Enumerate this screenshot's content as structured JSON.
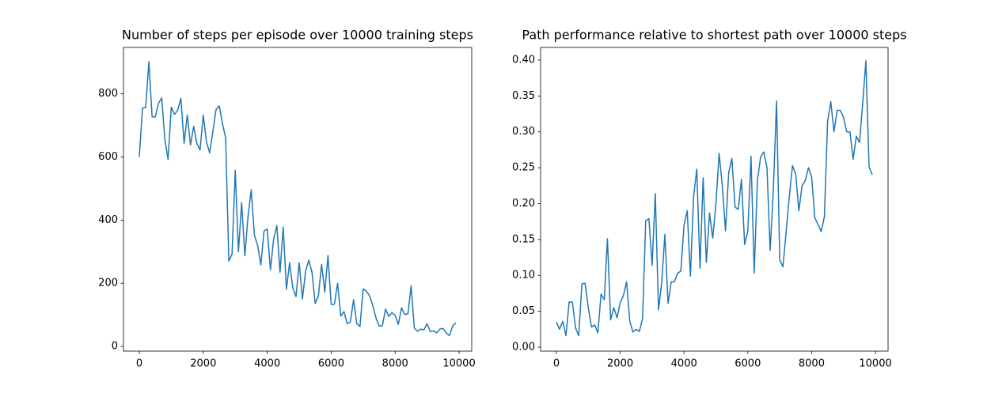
{
  "chart_data": [
    {
      "type": "line",
      "title": "Number of steps per episode over 10000 training steps",
      "x": [
        0,
        100,
        200,
        300,
        400,
        500,
        600,
        700,
        800,
        900,
        1000,
        1100,
        1200,
        1300,
        1400,
        1500,
        1600,
        1700,
        1800,
        1900,
        2000,
        2100,
        2200,
        2300,
        2400,
        2500,
        2600,
        2700,
        2800,
        2900,
        3000,
        3100,
        3200,
        3300,
        3400,
        3500,
        3600,
        3700,
        3800,
        3900,
        4000,
        4100,
        4200,
        4300,
        4400,
        4500,
        4600,
        4700,
        4800,
        4900,
        5000,
        5100,
        5200,
        5300,
        5400,
        5500,
        5600,
        5700,
        5800,
        5900,
        6000,
        6100,
        6200,
        6300,
        6400,
        6500,
        6600,
        6700,
        6800,
        6900,
        7000,
        7100,
        7200,
        7300,
        7400,
        7500,
        7600,
        7700,
        7800,
        7900,
        8000,
        8100,
        8200,
        8300,
        8400,
        8500,
        8600,
        8700,
        8800,
        8900,
        9000,
        9100,
        9200,
        9300,
        9400,
        9500,
        9600,
        9700,
        9800,
        9900
      ],
      "series": [
        {
          "color": "#1f77b4",
          "values": [
            600,
            755,
            757,
            902,
            727,
            727,
            770,
            787,
            655,
            592,
            758,
            735,
            748,
            786,
            643,
            733,
            638,
            697,
            643,
            622,
            733,
            648,
            613,
            680,
            750,
            762,
            706,
            660,
            270,
            292,
            557,
            300,
            455,
            287,
            412,
            496,
            352,
            320,
            258,
            365,
            372,
            242,
            340,
            383,
            235,
            378,
            181,
            265,
            185,
            158,
            265,
            150,
            238,
            273,
            235,
            136,
            160,
            260,
            172,
            288,
            133,
            133,
            200,
            96,
            110,
            72,
            78,
            148,
            72,
            63,
            182,
            175,
            160,
            130,
            90,
            65,
            65,
            118,
            95,
            107,
            98,
            70,
            122,
            101,
            103,
            192,
            58,
            48,
            55,
            52,
            72,
            47,
            49,
            43,
            55,
            57,
            42,
            34,
            65,
            75
          ]
        }
      ],
      "xlim": [
        -495,
        10395
      ],
      "xticks": [
        0,
        2000,
        4000,
        6000,
        8000,
        10000
      ],
      "ylim": [
        -15,
        947
      ],
      "yticks": [
        0,
        200,
        400,
        600,
        800
      ]
    },
    {
      "type": "line",
      "title": "Path performance relative to shortest path over 10000 steps",
      "x": [
        0,
        100,
        200,
        300,
        400,
        500,
        600,
        700,
        800,
        900,
        1000,
        1100,
        1200,
        1300,
        1400,
        1500,
        1600,
        1700,
        1800,
        1900,
        2000,
        2100,
        2200,
        2300,
        2400,
        2500,
        2600,
        2700,
        2800,
        2900,
        3000,
        3100,
        3200,
        3300,
        3400,
        3500,
        3600,
        3700,
        3800,
        3900,
        4000,
        4100,
        4200,
        4300,
        4400,
        4500,
        4600,
        4700,
        4800,
        4900,
        5000,
        5100,
        5200,
        5300,
        5400,
        5500,
        5600,
        5700,
        5800,
        5900,
        6000,
        6100,
        6200,
        6300,
        6400,
        6500,
        6600,
        6700,
        6800,
        6900,
        7000,
        7100,
        7200,
        7300,
        7400,
        7500,
        7600,
        7700,
        7800,
        7900,
        8000,
        8100,
        8200,
        8300,
        8400,
        8500,
        8600,
        8700,
        8800,
        8900,
        9000,
        9100,
        9200,
        9300,
        9400,
        9500,
        9600,
        9700,
        9800,
        9900
      ],
      "series": [
        {
          "color": "#1f77b4",
          "values": [
            0.035,
            0.025,
            0.036,
            0.016,
            0.063,
            0.063,
            0.027,
            0.016,
            0.088,
            0.089,
            0.055,
            0.028,
            0.031,
            0.02,
            0.074,
            0.066,
            0.151,
            0.038,
            0.055,
            0.041,
            0.062,
            0.072,
            0.091,
            0.036,
            0.021,
            0.025,
            0.022,
            0.04,
            0.176,
            0.179,
            0.114,
            0.214,
            0.052,
            0.09,
            0.157,
            0.061,
            0.091,
            0.091,
            0.103,
            0.106,
            0.17,
            0.19,
            0.099,
            0.21,
            0.248,
            0.11,
            0.236,
            0.118,
            0.187,
            0.152,
            0.2,
            0.27,
            0.225,
            0.162,
            0.243,
            0.263,
            0.195,
            0.192,
            0.234,
            0.143,
            0.162,
            0.266,
            0.103,
            0.232,
            0.265,
            0.272,
            0.25,
            0.135,
            0.22,
            0.343,
            0.122,
            0.112,
            0.16,
            0.21,
            0.253,
            0.241,
            0.19,
            0.225,
            0.232,
            0.25,
            0.237,
            0.18,
            0.171,
            0.161,
            0.182,
            0.315,
            0.342,
            0.3,
            0.33,
            0.33,
            0.32,
            0.3,
            0.3,
            0.262,
            0.294,
            0.285,
            0.34,
            0.399,
            0.251,
            0.24
          ]
        }
      ],
      "xlim": [
        -495,
        10395
      ],
      "xticks": [
        0,
        2000,
        4000,
        6000,
        8000,
        10000
      ],
      "ylim": [
        -0.0055,
        0.4176
      ],
      "yticks": [
        {
          "value": 0,
          "label": "0.00"
        },
        {
          "value": 0.05,
          "label": "0.05"
        },
        {
          "value": 0.1,
          "label": "0.10"
        },
        {
          "value": 0.15,
          "label": "0.15"
        },
        {
          "value": 0.2,
          "label": "0.20"
        },
        {
          "value": 0.25,
          "label": "0.25"
        },
        {
          "value": 0.3,
          "label": "0.30"
        },
        {
          "value": 0.35,
          "label": "0.35"
        },
        {
          "value": 0.4,
          "label": "0.40"
        }
      ]
    }
  ]
}
